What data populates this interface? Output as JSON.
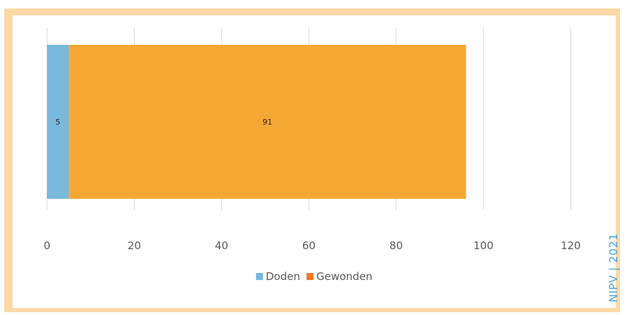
{
  "chart_data": {
    "type": "bar",
    "orientation": "horizontal",
    "stacked": true,
    "categories": [
      ""
    ],
    "series": [
      {
        "name": "Doden",
        "values": [
          5
        ],
        "color": "#7ab8dc"
      },
      {
        "name": "Gewonden",
        "values": [
          91
        ],
        "color": "#f5a733"
      }
    ],
    "xlim": [
      0,
      130
    ],
    "xticks": [
      0,
      20,
      40,
      60,
      80,
      100,
      120
    ],
    "grid": true,
    "legend_position": "bottom"
  },
  "legend": {
    "items": [
      {
        "label": "Doden",
        "color": "#7ab8dc"
      },
      {
        "label": "Gewonden",
        "color": "#f07a28"
      }
    ]
  },
  "credit": "NIPV | 2021",
  "colors": {
    "frame": "#fcd8a7",
    "gridline": "#d9d9d9",
    "credit": "#4aa3d8"
  }
}
